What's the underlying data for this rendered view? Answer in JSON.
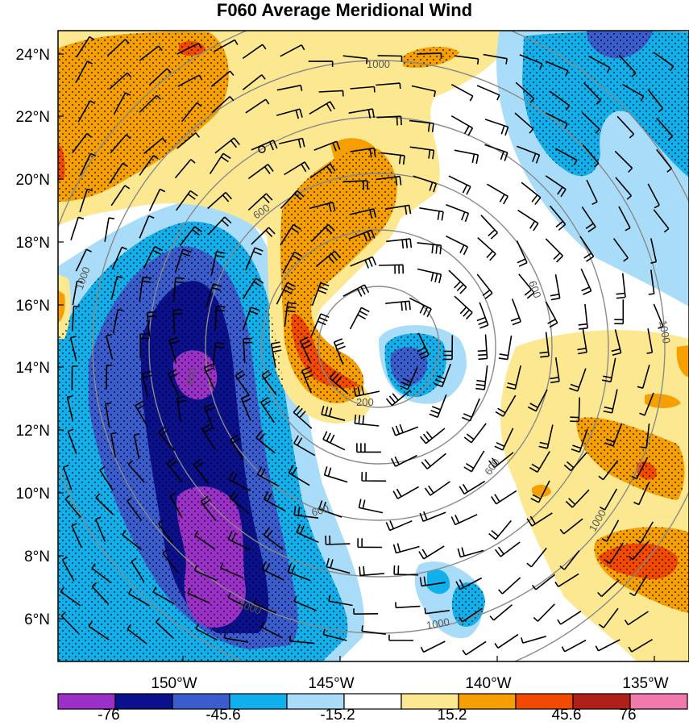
{
  "title": "F060 Average Meridional Wind",
  "map": {
    "lat_labels": [
      "24°N",
      "22°N",
      "20°N",
      "18°N",
      "16°N",
      "14°N",
      "12°N",
      "10°N",
      "8°N",
      "6°N"
    ],
    "lon_labels": [
      "150°W",
      "145°W",
      "140°W",
      "135°W"
    ],
    "contour_labels": [
      "1000",
      "600",
      "200",
      "600",
      "1000",
      "600",
      "1000",
      "600",
      "1000",
      "1000",
      "600",
      "1000"
    ]
  },
  "colorbar": {
    "labels": [
      "-76",
      "-45.6",
      "-15.2",
      "15.2",
      "45.6",
      "76"
    ],
    "colors": [
      "#9b30c8",
      "#0b108c",
      "#3a5ccc",
      "#10b0ec",
      "#a8dcf8",
      "#ffffff",
      "#fce890",
      "#f5a000",
      "#f24a00",
      "#b0201a",
      "#f07aac"
    ]
  },
  "colors": {
    "purple": "#9b30c8",
    "navy": "#0b108c",
    "royal": "#3a5ccc",
    "sky": "#10b0ec",
    "light_blue": "#a8dcf8",
    "light_yellow": "#fce890",
    "orange": "#f5a000",
    "red_orange": "#f24a00",
    "dark_red": "#b0201a"
  }
}
